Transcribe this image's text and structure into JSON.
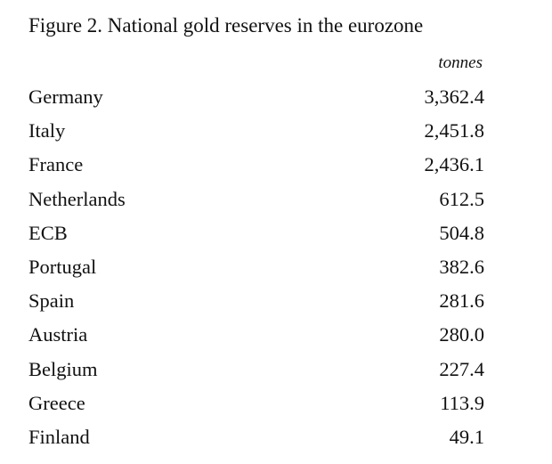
{
  "chart_data": {
    "type": "table",
    "title": "Figure 2. National gold reserves in the eurozone",
    "unit": "tonnes",
    "categories": [
      "Germany",
      "Italy",
      "France",
      "Netherlands",
      "ECB",
      "Portugal",
      "Spain",
      "Austria",
      "Belgium",
      "Greece",
      "Finland"
    ],
    "values": [
      3362.4,
      2451.8,
      2436.1,
      612.5,
      504.8,
      382.6,
      281.6,
      280.0,
      227.4,
      113.9,
      49.1
    ],
    "value_labels": [
      "3,362.4",
      "2,451.8",
      "2,436.1",
      "612.5",
      "504.8",
      "382.6",
      "281.6",
      "280.0",
      "227.4",
      "113.9",
      "49.1"
    ]
  }
}
